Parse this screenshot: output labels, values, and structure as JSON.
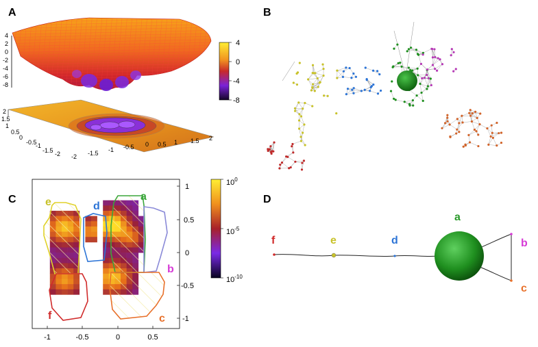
{
  "panels": {
    "A": {
      "letter": "A",
      "surface_z_ticks": [
        "4",
        "2",
        "0",
        "-2",
        "-4",
        "-6",
        "-8"
      ],
      "contour_y_ticks": [
        "2",
        "1.5",
        "1",
        "0.5",
        "0",
        "-0.5",
        "-1",
        "-1.5",
        "-2"
      ],
      "contour_x_ticks": [
        "-2",
        "-1.5",
        "-1",
        "-0.5",
        "0",
        "0.5",
        "1",
        "1.5",
        "2"
      ],
      "colorbar_ticks": [
        "4",
        "0",
        "-4",
        "-8"
      ]
    },
    "B": {
      "letter": "B"
    },
    "C": {
      "letter": "C",
      "x_ticks": [
        "-1",
        "-0.5",
        "0",
        "0.5"
      ],
      "y_ticks": [
        "1",
        "0.5",
        "0",
        "-0.5",
        "-1"
      ],
      "colorbar_ticks": [
        {
          "base": "10",
          "exp": "0"
        },
        {
          "base": "10",
          "exp": "-5"
        },
        {
          "base": "10",
          "exp": "-10"
        }
      ],
      "regions": [
        {
          "id": "a",
          "label": "a",
          "color": "#3aa63a"
        },
        {
          "id": "b",
          "label": "b",
          "color": "#d63ad6"
        },
        {
          "id": "c",
          "label": "c",
          "color": "#e8702a"
        },
        {
          "id": "d",
          "label": "d",
          "color": "#2c74d6"
        },
        {
          "id": "e",
          "label": "e",
          "color": "#c8c22a"
        },
        {
          "id": "f",
          "label": "f",
          "color": "#d02a2a"
        }
      ]
    },
    "D": {
      "letter": "D",
      "nodes": [
        {
          "id": "f",
          "label": "f",
          "color": "#d02a2a"
        },
        {
          "id": "e",
          "label": "e",
          "color": "#c8c22a"
        },
        {
          "id": "d",
          "label": "d",
          "color": "#2c74d6"
        },
        {
          "id": "a",
          "label": "a",
          "color": "#2a9a2a"
        },
        {
          "id": "b",
          "label": "b",
          "color": "#d63ad6"
        },
        {
          "id": "c",
          "label": "c",
          "color": "#e8702a"
        }
      ]
    }
  }
}
